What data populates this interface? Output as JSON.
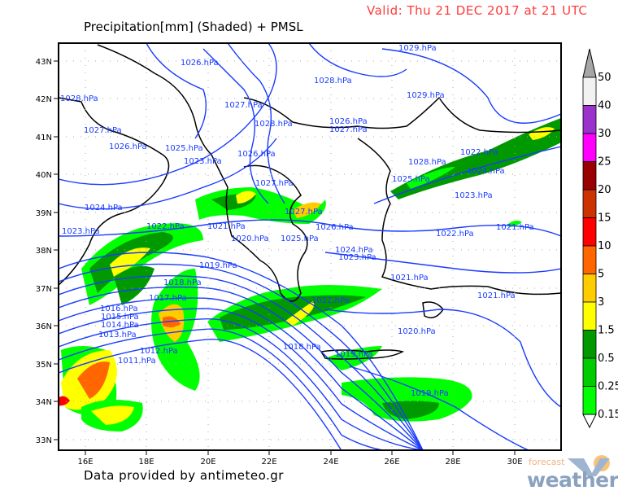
{
  "header": {
    "valid": "Valid: Thu 21 DEC 2017 at 21 UTC",
    "title": "Precipitation[mm] (Shaded) + PMSL"
  },
  "footer": {
    "credit": "Data provided by antimeteo.gr",
    "logo_text": [
      "forecast",
      "weather"
    ]
  },
  "map": {
    "lat_labels": [
      "43N",
      "42N",
      "41N",
      "40N",
      "39N",
      "38N",
      "37N",
      "36N",
      "35N",
      "34N",
      "33N"
    ],
    "lon_labels": [
      "16E",
      "18E",
      "20E",
      "22E",
      "24E",
      "26E",
      "28E",
      "30E"
    ],
    "isobar_color": "#1a3cff",
    "coast_color": "#000000",
    "pressure_labels": [
      "1029.hPa",
      "1026.hPa",
      "1028.hPa",
      "1029.hPa",
      "1028.hPa",
      "1027.hPa",
      "1028.hPa",
      "1026.hPa",
      "1027.hPa",
      "1027.hPa",
      "1026.hPa",
      "1025.hPa",
      "1026.hPa",
      "1023.hPa",
      "1022.hPa",
      "1028.hPa",
      "1024.hPa",
      "1027.hPa",
      "1025.hPa",
      "1023.hPa",
      "1024.hPa",
      "1027.hPa",
      "1026.hPa",
      "1021.hPa",
      "1020.hPa",
      "1025.hPa",
      "1022.hPa",
      "1023.hPa",
      "1022.hPa",
      "1021.hPa",
      "1024.hPa",
      "1023.hPa",
      "1021.hPa",
      "1021.hPa",
      "1022.hPa",
      "1020.hPa",
      "1019.hPa",
      "1019.hPa",
      "1018.hPa",
      "1019.hPa",
      "1018.hPa",
      "1017.hPa",
      "1016.hPa",
      "1015.hPa",
      "1014.hPa",
      "1013.hPa",
      "1012.hPa",
      "1011.hPa"
    ]
  },
  "colorbar": {
    "labels": [
      "50",
      "40",
      "30",
      "25",
      "20",
      "15",
      "10",
      "5",
      "3",
      "1.5",
      "0.5",
      "0.25",
      "0.15"
    ],
    "colors": [
      "#f2f2f2",
      "#9933cc",
      "#ff00ff",
      "#990000",
      "#cc3300",
      "#ff0000",
      "#ff6600",
      "#ffcc00",
      "#ffff00",
      "#009900",
      "#00cc00",
      "#00ff00"
    ],
    "over_color": "#a6a6a6",
    "under_color": "#ffffff"
  }
}
